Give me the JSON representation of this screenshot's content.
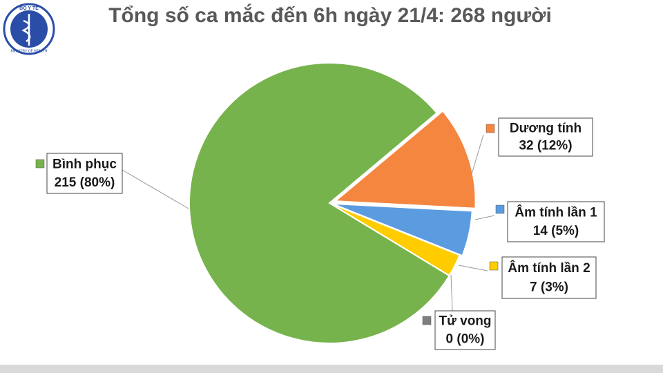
{
  "logo": {
    "top": "BỘ Y TẾ",
    "bottom": "MINISTRY OF HEALTH"
  },
  "chart_data": {
    "type": "pie",
    "title": "Tổng số ca mắc đến 6h ngày 21/4: 268 người",
    "categories": [
      "Dương tính",
      "Âm tính lần 1",
      "Âm tính lần 2",
      "Tử vong",
      "Bình phục"
    ],
    "values": [
      32,
      14,
      7,
      0,
      215
    ],
    "value_labels": [
      "32 (12%)",
      "14 (5%)",
      "7 (3%)",
      "0 (0%)",
      "215 (80%)"
    ],
    "colors": [
      "#f5863f",
      "#5b9be0",
      "#ffcc00",
      "#7f7f7f",
      "#76b34c"
    ]
  }
}
